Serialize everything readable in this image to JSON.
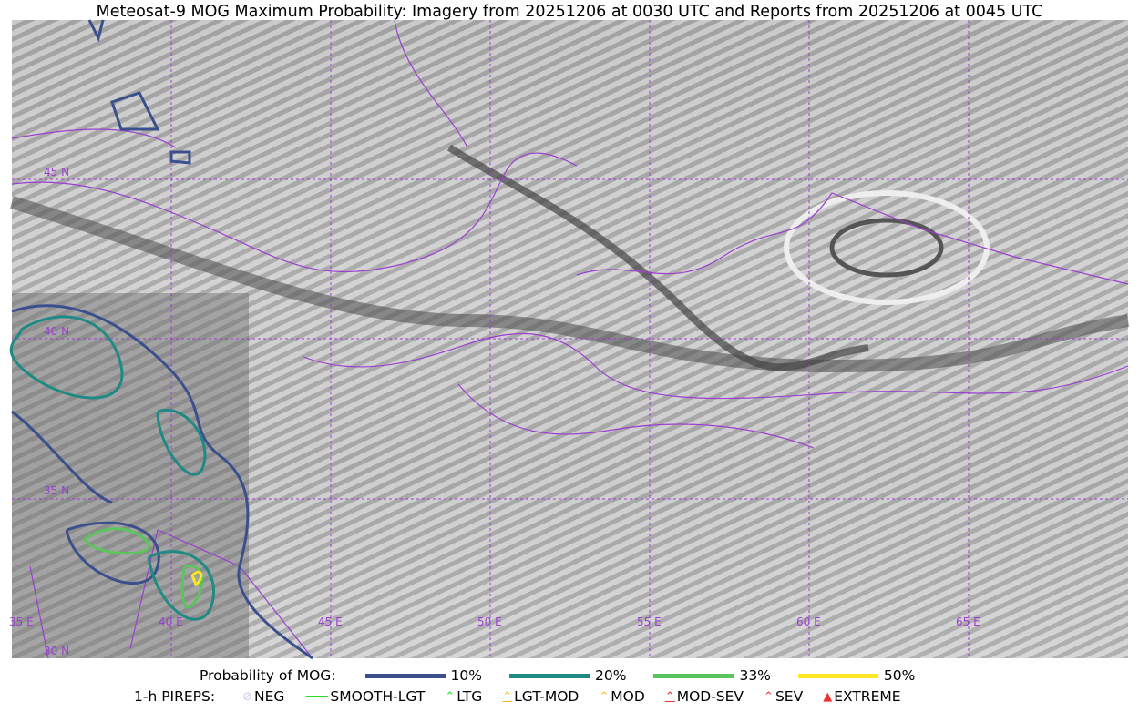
{
  "title": "Meteosat-9 MOG Maximum Probability: Imagery from 20251206 at 0030 UTC and Reports from 20251206 at 0045 UTC",
  "map": {
    "grid_color": "#9b3fd0",
    "longitude_labels": [
      "35 E",
      "40 E",
      "45 E",
      "50 E",
      "55 E",
      "60 E",
      "65 E"
    ],
    "latitude_labels": [
      "45 N",
      "40 N",
      "35 N",
      "30 N"
    ]
  },
  "legend": {
    "probability_label": "Probability of MOG:",
    "probability_levels": [
      {
        "label": "10%",
        "color": "#3b4f8c"
      },
      {
        "label": "20%",
        "color": "#1f8a84"
      },
      {
        "label": "33%",
        "color": "#5cc45c"
      },
      {
        "label": "50%",
        "color": "#fde725"
      }
    ],
    "pireps_label": "1-h PIREPS:",
    "pireps": [
      {
        "label": "NEG",
        "color": "#c8c8f5",
        "icon": "neg-icon"
      },
      {
        "label": "SMOOTH-LGT",
        "color": "#22e022",
        "icon": "line-icon"
      },
      {
        "label": "LTG",
        "color": "#22e022",
        "icon": "caret-icon"
      },
      {
        "label": "LGT-MOD",
        "color": "#fbb829",
        "icon": "caret-bar-icon"
      },
      {
        "label": "MOD",
        "color": "#fbb829",
        "icon": "caret-icon"
      },
      {
        "label": "MOD-SEV",
        "color": "#f03030",
        "icon": "double-caret-bar-icon"
      },
      {
        "label": "SEV",
        "color": "#f03030",
        "icon": "double-caret-icon"
      },
      {
        "label": "EXTREME",
        "color": "#f03030",
        "icon": "triangle-icon"
      }
    ]
  }
}
